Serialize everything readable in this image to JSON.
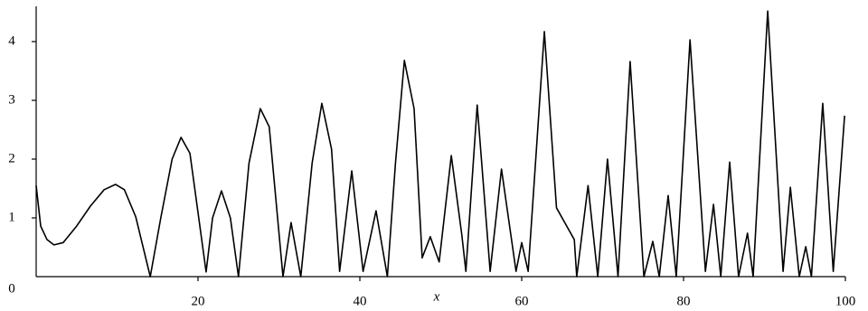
{
  "chart_data": {
    "type": "line",
    "x_label": "x",
    "x": [
      0,
      0.56,
      1.34,
      2.2,
      3.35,
      5.0,
      6.7,
      8.4,
      9.8,
      10.9,
      12.3,
      14.1,
      15.4,
      16.8,
      17.9,
      19.0,
      20.1,
      21.0,
      21.8,
      22.9,
      24.0,
      25.0,
      26.3,
      27.7,
      28.8,
      30.5,
      31.5,
      32.7,
      34.1,
      35.3,
      36.5,
      37.5,
      39.0,
      40.4,
      42.0,
      43.4,
      44.4,
      45.5,
      46.7,
      47.7,
      48.7,
      49.8,
      51.3,
      52.6,
      53.1,
      54.5,
      56.1,
      57.5,
      59.3,
      60.0,
      60.8,
      62.8,
      64.3,
      66.5,
      66.8,
      68.2,
      69.4,
      70.6,
      71.9,
      73.4,
      75.1,
      76.2,
      77.0,
      78.1,
      79.1,
      80.8,
      82.7,
      83.7,
      84.6,
      85.7,
      86.8,
      87.9,
      88.6,
      90.4,
      92.3,
      93.2,
      94.3,
      95.1,
      95.8,
      97.2,
      98.5,
      99.9
    ],
    "series": [
      {
        "color": "#000000",
        "values": [
          1.55,
          0.86,
          0.63,
          0.54,
          0.58,
          0.86,
          1.2,
          1.48,
          1.57,
          1.48,
          1.02,
          0,
          1.0,
          2.0,
          2.37,
          2.1,
          0.99,
          0.08,
          1.0,
          1.46,
          1.0,
          0,
          1.93,
          2.86,
          2.55,
          0,
          0.92,
          0,
          1.93,
          2.95,
          2.17,
          0.09,
          1.8,
          0.09,
          1.12,
          0,
          1.93,
          3.68,
          2.86,
          0.32,
          0.68,
          0.25,
          2.06,
          0.71,
          0.09,
          2.92,
          0.09,
          1.83,
          0.09,
          0.58,
          0.09,
          4.17,
          1.17,
          0.63,
          0,
          1.55,
          0,
          2.0,
          0,
          3.66,
          0,
          0.6,
          0,
          1.38,
          0,
          4.03,
          0.09,
          1.23,
          0,
          1.95,
          0,
          0.74,
          0,
          4.52,
          0.09,
          1.52,
          0,
          0.51,
          0,
          2.95,
          0.09,
          2.74
        ]
      }
    ],
    "xlim": [
      0,
      100
    ],
    "xticks": [
      20,
      40,
      60,
      80,
      100
    ],
    "ylim": [
      0,
      4.6
    ],
    "yticks": [
      0,
      1,
      2,
      3,
      4
    ]
  }
}
